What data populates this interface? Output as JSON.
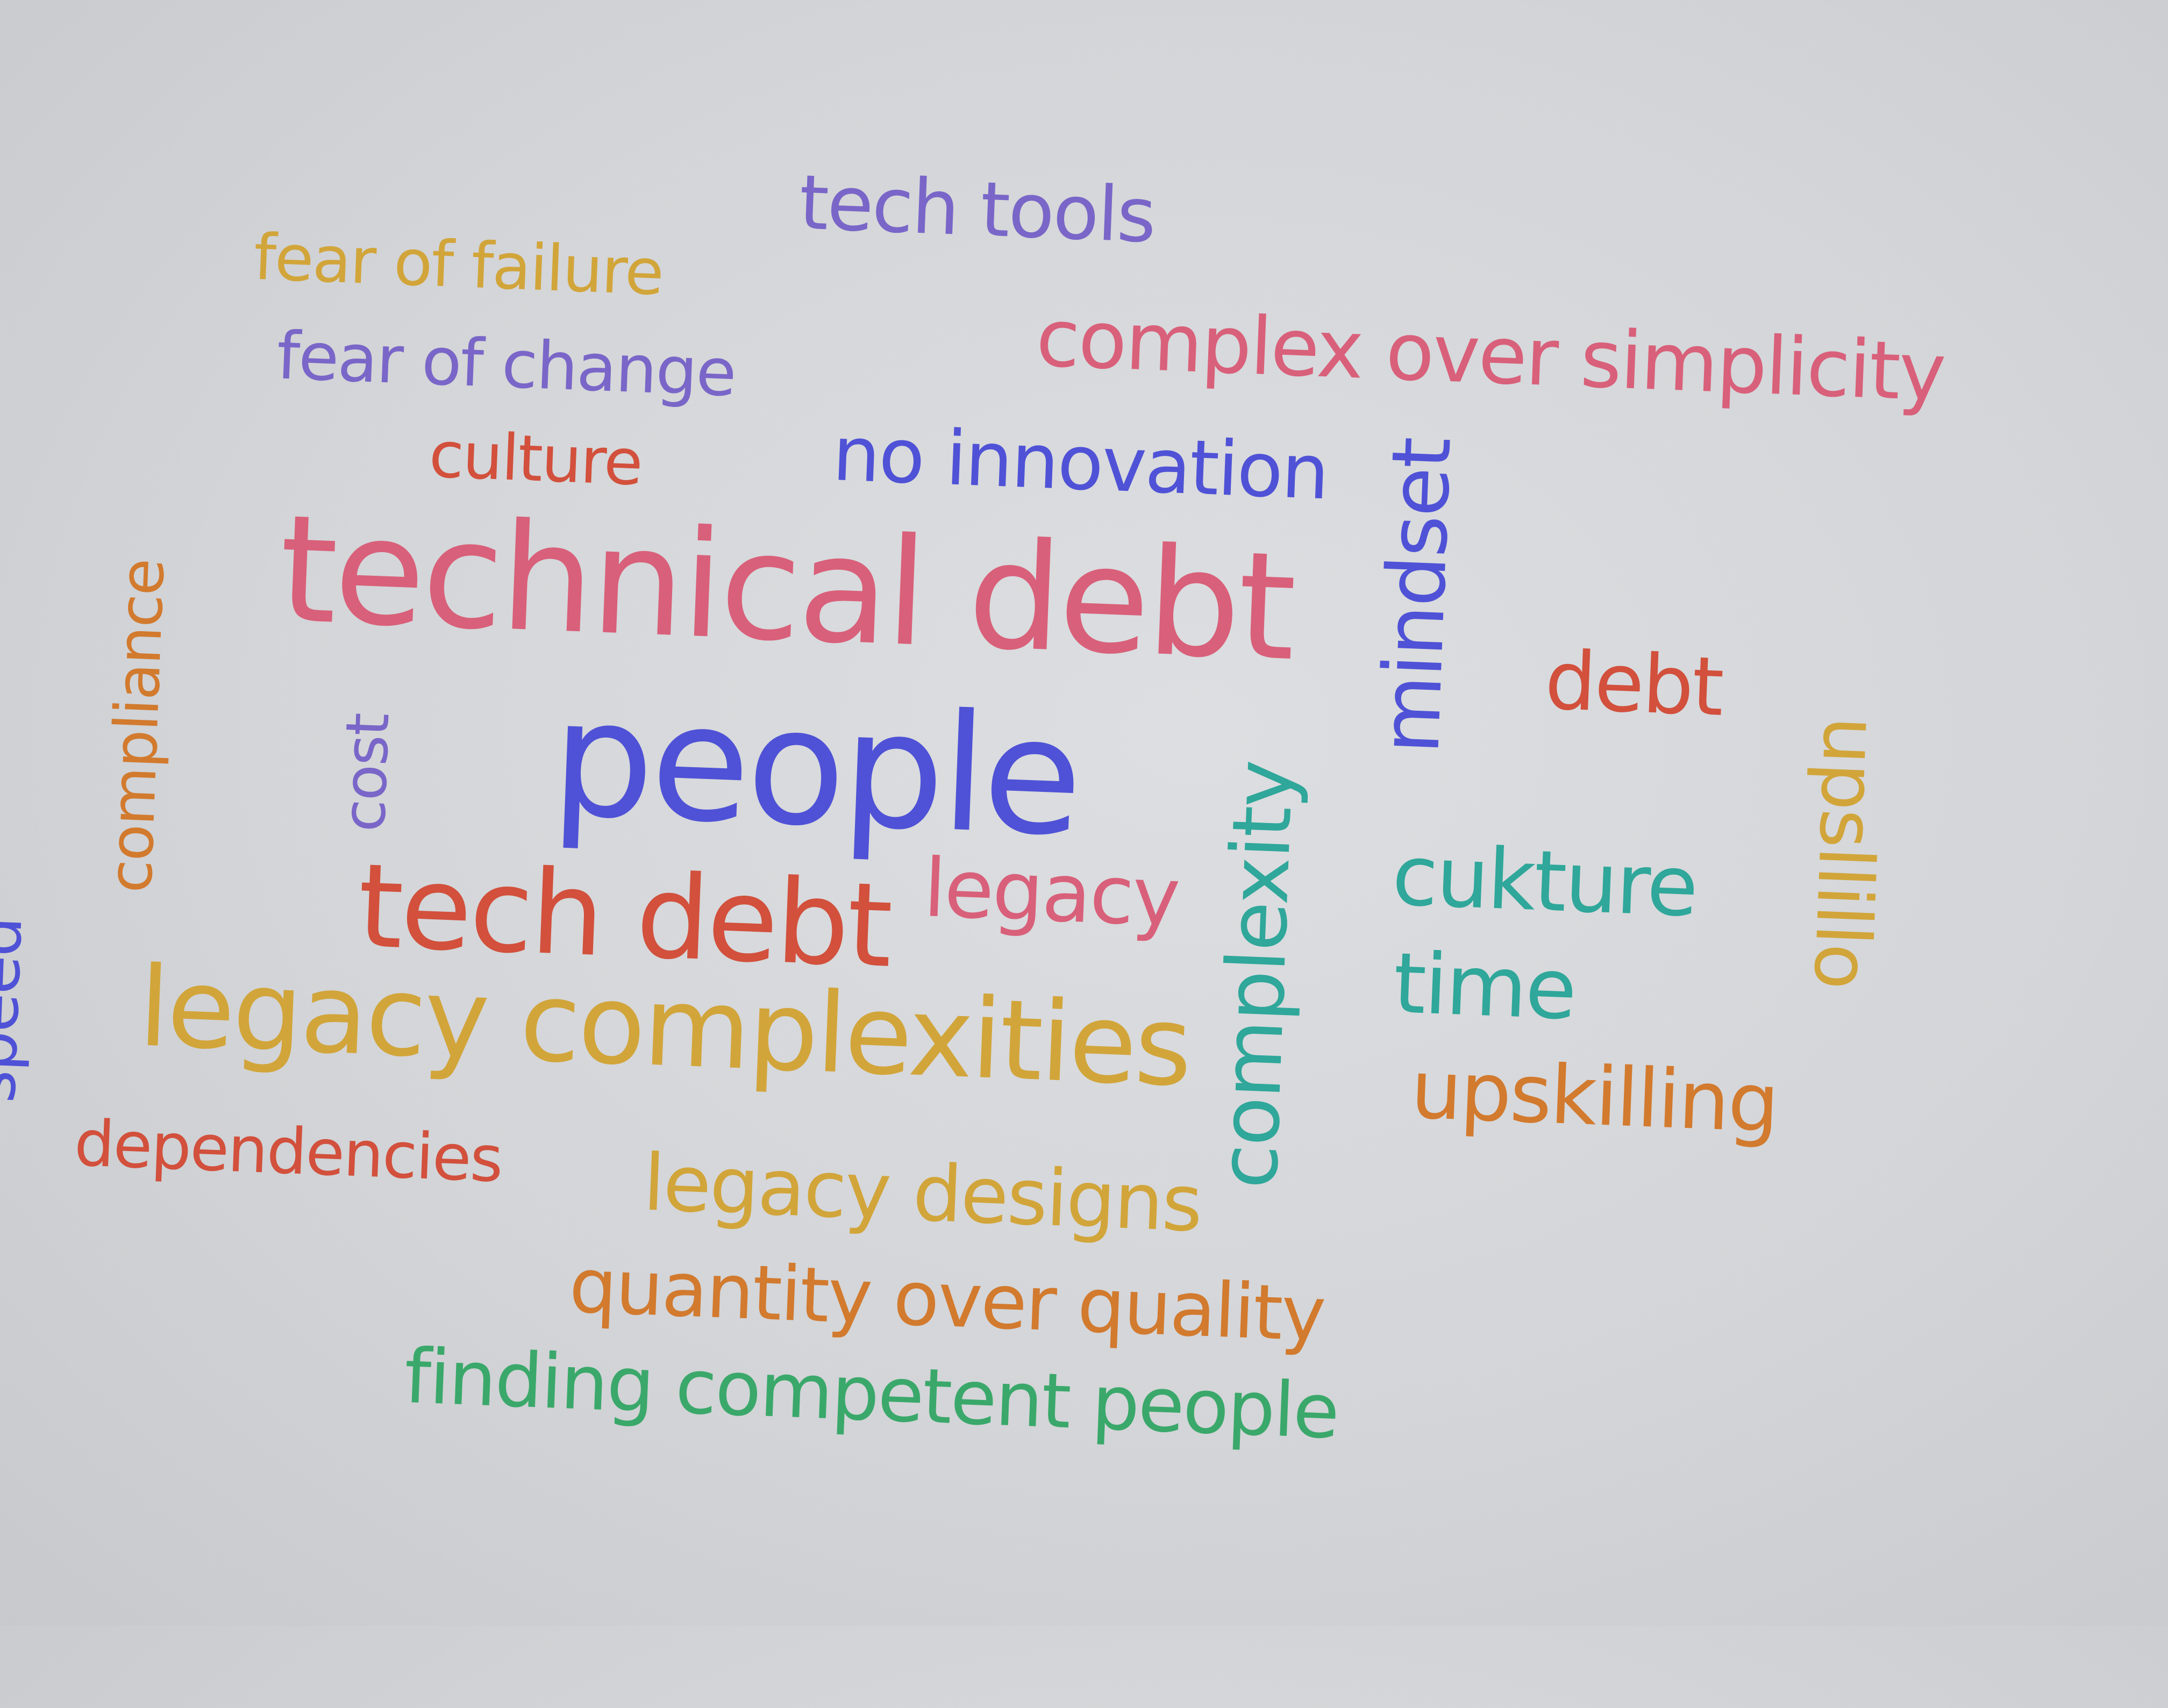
{
  "words": {
    "tech_tools": "tech tools",
    "fear_of_failure": "fear of failure",
    "fear_of_change": "fear of change",
    "complex_over_simplicity": "complex over simplicity",
    "culture": "culture",
    "no_innovation": "no innovation",
    "mindset": "mindset",
    "compliance": "compliance",
    "technical_debt": "technical debt",
    "cost": "cost",
    "people": "people",
    "debt": "debt",
    "upsllillo": "upsllillo",
    "complexity": "complexity",
    "cukture": "cukture",
    "time": "time",
    "speed": "speed",
    "tech_debt": "tech debt",
    "legacy": "legacy",
    "legacy_complexities": "legacy complexities",
    "upskilling": "upskilling",
    "dependencies": "dependencies",
    "legacy_designs": "legacy designs",
    "quantity_over_quality": "quantity over quality",
    "finding_competent_people": "finding competent people"
  },
  "colors": {
    "pink": "#d9607a",
    "purple": "#7a66c8",
    "blue": "#4f52d6",
    "red": "#d2503c",
    "orange": "#d27a2e",
    "gold": "#d2a53a",
    "teal": "#2fa79a",
    "green": "#3aa86a"
  }
}
